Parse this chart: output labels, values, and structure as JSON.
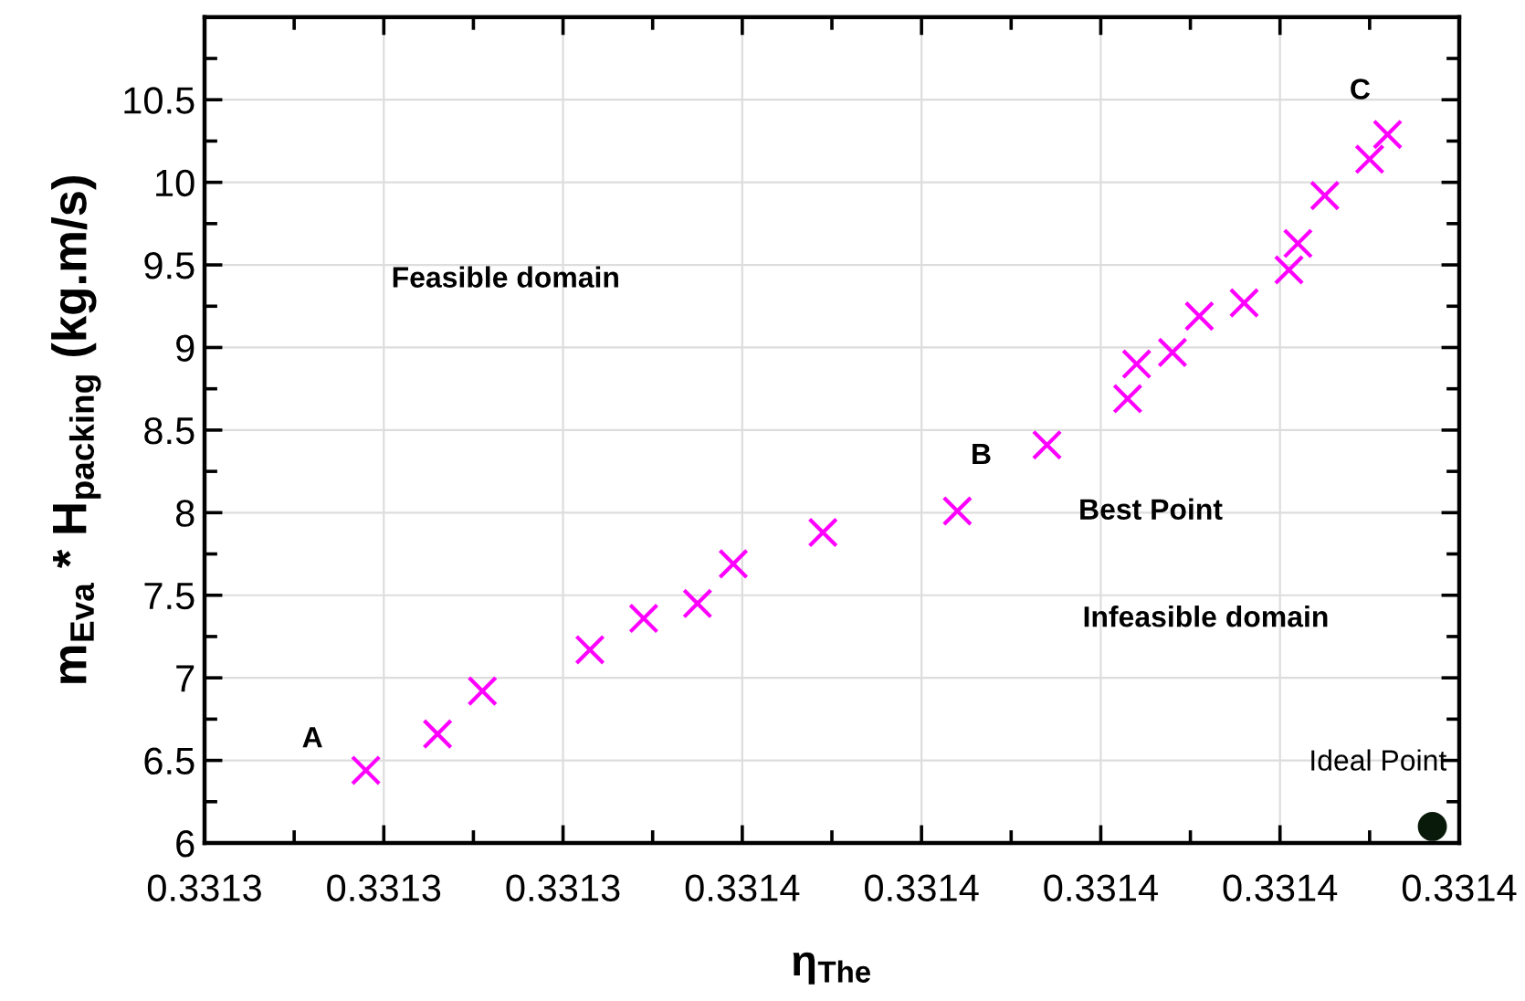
{
  "chart_data": {
    "type": "scatter",
    "xlabel": "η$_{The}$",
    "ylabel": "m$_{Eva}$ * H$_{packing}$ (kg.m/s)",
    "xlim": [
      0.3313,
      0.33144
    ],
    "xticks": [
      {
        "value": 0.3313,
        "label": "0.3313"
      },
      {
        "value": 0.33132,
        "label": "0.3313"
      },
      {
        "value": 0.33134,
        "label": "0.3313"
      },
      {
        "value": 0.33136,
        "label": "0.3314"
      },
      {
        "value": 0.33138,
        "label": "0.3314"
      },
      {
        "value": 0.3314,
        "label": "0.3314"
      },
      {
        "value": 0.33142,
        "label": "0.3314"
      },
      {
        "value": 0.33144,
        "label": "0.3314"
      }
    ],
    "ylim": [
      6,
      11
    ],
    "yticks": [
      6,
      6.5,
      7,
      7.5,
      8,
      8.5,
      9,
      9.5,
      10,
      10.5
    ],
    "grid": true,
    "series": [
      {
        "color": "#ff00ff",
        "marker": "cross",
        "x": [
          0.331318,
          0.331326,
          0.331331,
          0.331343,
          0.331349,
          0.331355,
          0.331359,
          0.331369,
          0.331384,
          0.331394,
          0.331403,
          0.331404,
          0.331408,
          0.331411,
          0.331416,
          0.331421,
          0.331422,
          0.331425,
          0.33143,
          0.331432
        ],
        "values": [
          6.44,
          6.66,
          6.92,
          7.17,
          7.36,
          7.45,
          7.69,
          7.88,
          8.01,
          8.41,
          8.69,
          8.9,
          8.97,
          9.19,
          9.27,
          9.47,
          9.63,
          9.92,
          10.14,
          10.29
        ]
      },
      {
        "color": "#0a1a0a",
        "marker": "circle",
        "x": [
          0.331437
        ],
        "values": [
          6.1
        ]
      }
    ],
    "annotations": [
      "A",
      "B",
      "C",
      "Best Point",
      "Feasible domain",
      "Infeasible domain",
      "Ideal Point"
    ]
  }
}
